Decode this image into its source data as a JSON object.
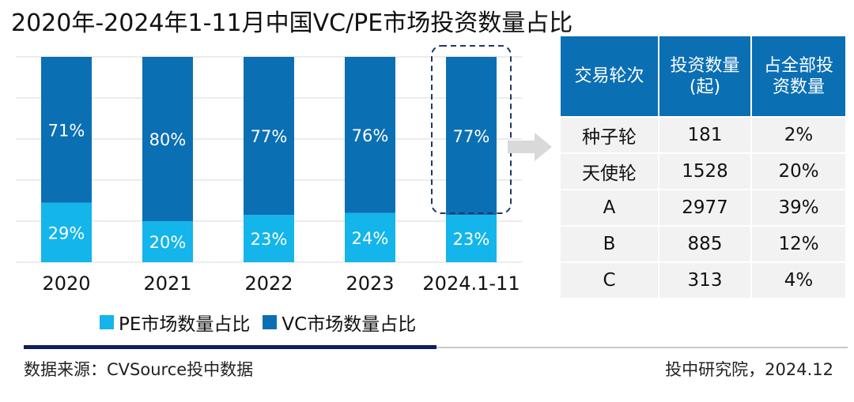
{
  "title": "2020年-2024年1-11月中国VC/PE市场投资数量占比",
  "colors": {
    "pe": "#13b5ea",
    "vc": "#0b6fb4",
    "header": "#0b6fb4",
    "arrow": "#d9d9d9",
    "highlight": "#1f3864"
  },
  "chart_data": {
    "type": "bar",
    "stacked": true,
    "categories": [
      "2020",
      "2021",
      "2022",
      "2023",
      "2024.1-11"
    ],
    "series": [
      {
        "name": "PE市场数量占比",
        "values": [
          29,
          20,
          23,
          24,
          23
        ],
        "labels": [
          "29%",
          "20%",
          "23%",
          "24%",
          "23%"
        ]
      },
      {
        "name": "VC市场数量占比",
        "values": [
          71,
          80,
          77,
          76,
          77
        ],
        "labels": [
          "71%",
          "80%",
          "77%",
          "76%",
          "77%"
        ]
      }
    ],
    "ylim": [
      0,
      100
    ],
    "grid": true,
    "legend": "bottom",
    "highlight_category": "2024.1-11"
  },
  "table": {
    "headers": [
      "交易轮次",
      "投资数量\n(起)",
      "占全部投\n资数量"
    ],
    "rows": [
      [
        "种子轮",
        "181",
        "2%"
      ],
      [
        "天使轮",
        "1528",
        "20%"
      ],
      [
        "A",
        "2977",
        "39%"
      ],
      [
        "B",
        "885",
        "12%"
      ],
      [
        "C",
        "313",
        "4%"
      ]
    ]
  },
  "legend": {
    "pe": "PE市场数量占比",
    "vc": "VC市场数量占比"
  },
  "footer": {
    "source": "数据来源：CVSource投中数据",
    "credit": "投中研究院，2024.12"
  }
}
